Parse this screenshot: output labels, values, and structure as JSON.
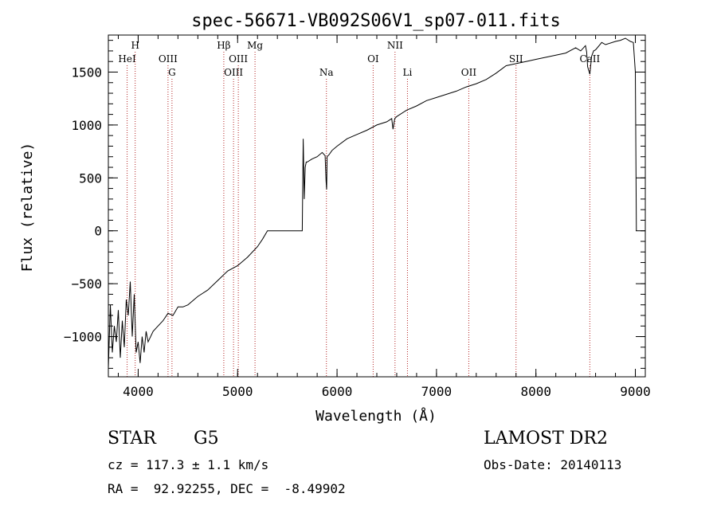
{
  "chart_data": {
    "type": "line",
    "title": "spec-56671-VB092S06V1_sp07-011.fits",
    "xlabel": "Wavelength (Å)",
    "ylabel": "Flux (relative)",
    "xlim": [
      3700,
      9100
    ],
    "ylim": [
      -1380,
      1850
    ],
    "xticks": [
      4000,
      5000,
      6000,
      7000,
      8000,
      9000
    ],
    "yticks": [
      -1000,
      -500,
      0,
      500,
      1000,
      1500
    ],
    "grid": false,
    "line_color": "#000000",
    "marker_color": "#b22222",
    "series": [
      {
        "name": "",
        "x": [
          3700,
          3720,
          3740,
          3760,
          3780,
          3800,
          3820,
          3840,
          3860,
          3880,
          3900,
          3920,
          3940,
          3960,
          3980,
          4000,
          4020,
          4040,
          4060,
          4080,
          4100,
          4150,
          4200,
          4250,
          4300,
          4350,
          4400,
          4450,
          4500,
          4600,
          4700,
          4800,
          4900,
          5000,
          5100,
          5200,
          5250,
          5300,
          5350,
          5400,
          5500,
          5600,
          5650,
          5660,
          5670,
          5680,
          5690,
          5700,
          5750,
          5800,
          5850,
          5880,
          5890,
          5895,
          5900,
          5920,
          5950,
          6000,
          6100,
          6200,
          6300,
          6400,
          6500,
          6550,
          6563,
          6580,
          6600,
          6700,
          6800,
          6900,
          7000,
          7100,
          7200,
          7300,
          7400,
          7500,
          7600,
          7700,
          7800,
          7900,
          8000,
          8100,
          8200,
          8300,
          8400,
          8450,
          8498,
          8510,
          8520,
          8542,
          8560,
          8580,
          8600,
          8662,
          8700,
          8800,
          8850,
          8900,
          8950,
          8980,
          9000,
          9010
        ],
        "y": [
          -1300,
          -700,
          -1150,
          -900,
          -1050,
          -750,
          -1200,
          -850,
          -1100,
          -650,
          -800,
          -480,
          -1000,
          -600,
          -1150,
          -1050,
          -1250,
          -1000,
          -1150,
          -950,
          -1050,
          -950,
          -900,
          -850,
          -780,
          -800,
          -720,
          -720,
          -700,
          -620,
          -560,
          -470,
          -380,
          -330,
          -250,
          -150,
          -80,
          0,
          0,
          0,
          0,
          0,
          0,
          870,
          300,
          600,
          650,
          650,
          680,
          700,
          740,
          710,
          470,
          390,
          700,
          720,
          760,
          800,
          870,
          910,
          950,
          1000,
          1030,
          1060,
          960,
          1060,
          1080,
          1140,
          1180,
          1230,
          1260,
          1290,
          1320,
          1360,
          1390,
          1430,
          1490,
          1560,
          1580,
          1600,
          1620,
          1640,
          1660,
          1680,
          1730,
          1700,
          1750,
          1690,
          1550,
          1480,
          1650,
          1700,
          1710,
          1780,
          1760,
          1790,
          1800,
          1820,
          1790,
          1780,
          1500,
          0
        ]
      }
    ],
    "line_markers": [
      {
        "label": "HeI",
        "x": 3889,
        "row": 2
      },
      {
        "label": "H",
        "x": 3970,
        "row": 1
      },
      {
        "label": "OIII",
        "x": 4300,
        "row": 2
      },
      {
        "label": "G",
        "x": 4340,
        "row": 3
      },
      {
        "label": "Hβ",
        "x": 4861,
        "row": 1
      },
      {
        "label": "OIII",
        "x": 4959,
        "row": 3
      },
      {
        "label": "OIII",
        "x": 5007,
        "row": 2
      },
      {
        "label": "Mg",
        "x": 5175,
        "row": 1
      },
      {
        "label": "Na",
        "x": 5893,
        "row": 3
      },
      {
        "label": "OI",
        "x": 6363,
        "row": 2
      },
      {
        "label": "NII",
        "x": 6583,
        "row": 1
      },
      {
        "label": "Li",
        "x": 6708,
        "row": 3
      },
      {
        "label": "OII",
        "x": 7325,
        "row": 3
      },
      {
        "label": "SII",
        "x": 7800,
        "row": 2
      },
      {
        "label": "CaII",
        "x": 8542,
        "row": 2
      }
    ]
  },
  "info": {
    "object_class": "STAR",
    "subclass": "G5",
    "survey": "LAMOST DR2",
    "redshift": "cz = 117.3 ± 1.1 km/s",
    "obs_date": "Obs-Date: 20140113",
    "coords": "RA =  92.92255, DEC =  -8.49902"
  }
}
